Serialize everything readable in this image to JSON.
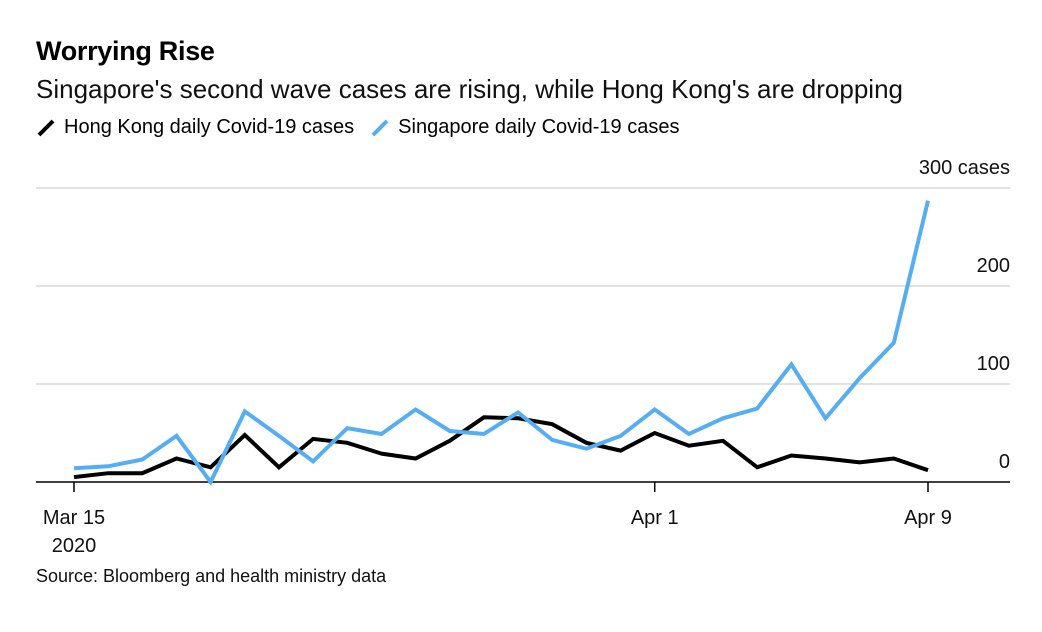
{
  "chart_data": {
    "type": "line",
    "title": "Worrying Rise",
    "subtitle": "Singapore's second wave cases are rising, while Hong Kong's are dropping",
    "source": "Source: Bloomberg and health ministry data",
    "xlabel": "",
    "ylabel": "",
    "ylim": [
      0,
      300
    ],
    "y_ticks": [
      0,
      100,
      200,
      300
    ],
    "y_tick_labels": [
      "0",
      "100",
      "200",
      "300 cases"
    ],
    "x_ticks": [
      {
        "label": "Mar 15",
        "sublabel": "2020",
        "index": 0
      },
      {
        "label": "Apr 1",
        "sublabel": "",
        "index": 17
      },
      {
        "label": "Apr 9",
        "sublabel": "",
        "index": 25
      }
    ],
    "x": [
      "Mar 15",
      "Mar 16",
      "Mar 17",
      "Mar 18",
      "Mar 19",
      "Mar 20",
      "Mar 21",
      "Mar 22",
      "Mar 23",
      "Mar 24",
      "Mar 25",
      "Mar 26",
      "Mar 27",
      "Mar 28",
      "Mar 29",
      "Mar 30",
      "Mar 31",
      "Apr 1",
      "Apr 2",
      "Apr 3",
      "Apr 4",
      "Apr 5",
      "Apr 6",
      "Apr 7",
      "Apr 8",
      "Apr 9"
    ],
    "series": [
      {
        "name": "Hong Kong daily Covid-19 cases",
        "color": "#000000",
        "values": [
          5,
          9,
          9,
          24,
          15,
          48,
          15,
          44,
          40,
          29,
          24,
          42,
          66,
          65,
          59,
          40,
          32,
          50,
          37,
          42,
          15,
          27,
          24,
          20,
          24,
          12
        ]
      },
      {
        "name": "Singapore daily Covid-19 cases",
        "color": "#56aef2",
        "values": [
          14,
          16,
          23,
          47,
          0,
          72,
          47,
          21,
          55,
          49,
          74,
          52,
          49,
          71,
          43,
          34,
          47,
          74,
          49,
          65,
          75,
          120,
          65,
          106,
          142,
          287
        ]
      }
    ],
    "legend": "top-left"
  }
}
